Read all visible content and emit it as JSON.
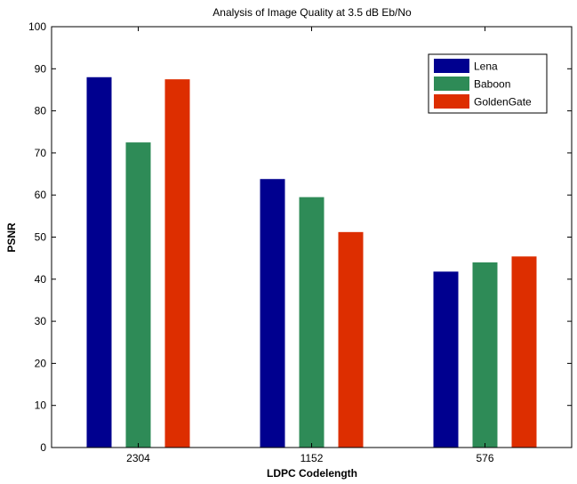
{
  "chart_data": {
    "type": "bar",
    "title": "Analysis of Image Quality at 3.5 dB Eb/No",
    "xlabel": "LDPC Codelength",
    "ylabel": "PSNR",
    "categories": [
      "2304",
      "1152",
      "576"
    ],
    "series": [
      {
        "name": "Lena",
        "values": [
          88,
          63.8,
          41.8
        ],
        "color": "#00008f"
      },
      {
        "name": "Baboon",
        "values": [
          72.5,
          59.5,
          44
        ],
        "color": "#2e8b57"
      },
      {
        "name": "GoldenGate",
        "values": [
          87.5,
          51.2,
          45.4
        ],
        "color": "#dd2e00"
      }
    ],
    "ylim": [
      0,
      100
    ],
    "yticks": [
      "0",
      "10",
      "20",
      "30",
      "40",
      "50",
      "60",
      "70",
      "80",
      "90",
      "100"
    ],
    "grid": false,
    "legend_position": "top-right"
  }
}
